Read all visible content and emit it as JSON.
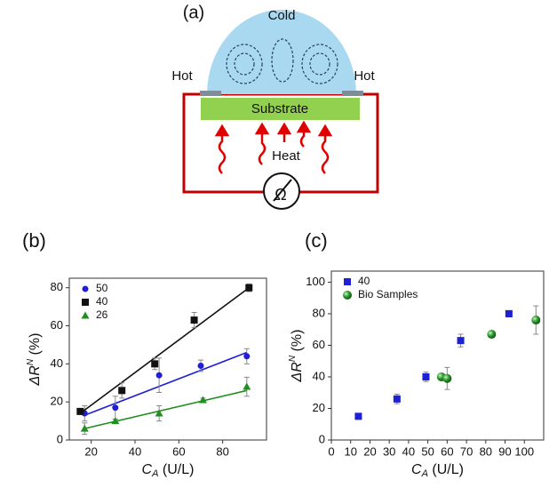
{
  "diagram": {
    "label": "(a)",
    "cold": "Cold",
    "hot_left": "Hot",
    "hot_right": "Hot",
    "substrate": "Substrate",
    "heat": "Heat",
    "meter": "Ω"
  },
  "chart_data": [
    {
      "type": "scatter",
      "label": "(b)",
      "xlabel": [
        "C",
        "A",
        " (U/L)"
      ],
      "ylabel": [
        "ΔR",
        "N",
        " (%)"
      ],
      "xlim": [
        10,
        100
      ],
      "xticks": [
        20,
        40,
        60,
        80
      ],
      "ylim": [
        0,
        85
      ],
      "yticks": [
        0,
        20,
        40,
        60,
        80
      ],
      "legend": "upper left",
      "series": [
        {
          "name": "50",
          "color": "#1f1fd6",
          "marker": "circle",
          "x": [
            17,
            31,
            51,
            70,
            91
          ],
          "values": [
            14,
            17,
            34,
            39,
            44
          ],
          "errors": [
            4,
            6,
            9,
            3,
            4
          ],
          "fit": {
            "x": [
              17,
              91
            ],
            "values": [
              13,
              46
            ]
          }
        },
        {
          "name": "40",
          "color": "#111111",
          "marker": "square",
          "x": [
            15,
            34,
            49,
            67,
            92
          ],
          "values": [
            15,
            26,
            40,
            63,
            80
          ],
          "errors": [
            1,
            4,
            3,
            4,
            2
          ],
          "fit": {
            "x": [
              15,
              92
            ],
            "values": [
              14,
              80
            ]
          }
        },
        {
          "name": "26",
          "color": "#1f8f1f",
          "marker": "triangle",
          "x": [
            17,
            31,
            51,
            71,
            91
          ],
          "values": [
            6,
            10,
            14,
            21,
            28
          ],
          "errors": [
            3,
            1,
            4,
            1,
            5
          ],
          "fit": {
            "x": [
              17,
              91
            ],
            "values": [
              6,
              26
            ]
          }
        }
      ]
    },
    {
      "type": "scatter",
      "label": "(c)",
      "xlabel": [
        "C",
        "A",
        " (U/L)"
      ],
      "ylabel": [
        "ΔR",
        "N",
        " (%)"
      ],
      "xlim": [
        0,
        110
      ],
      "xticks": [
        0,
        10,
        20,
        30,
        40,
        50,
        60,
        70,
        80,
        90,
        100
      ],
      "ylim": [
        0,
        107
      ],
      "yticks": [
        0,
        20,
        40,
        60,
        80,
        100
      ],
      "legend": "upper left",
      "series": [
        {
          "name": "40",
          "color": "#1f1fd6",
          "marker": "square",
          "x": [
            14,
            34,
            49,
            67,
            92
          ],
          "values": [
            15,
            26,
            40,
            63,
            80
          ],
          "errors": [
            1,
            3,
            3,
            4,
            2
          ]
        },
        {
          "name": "Bio Samples",
          "color": "#2a9a2a",
          "marker": "sphere",
          "x": [
            57,
            60,
            83,
            106
          ],
          "values": [
            40,
            39,
            67,
            76
          ],
          "errors": [
            1,
            7,
            1,
            9
          ]
        }
      ]
    }
  ]
}
